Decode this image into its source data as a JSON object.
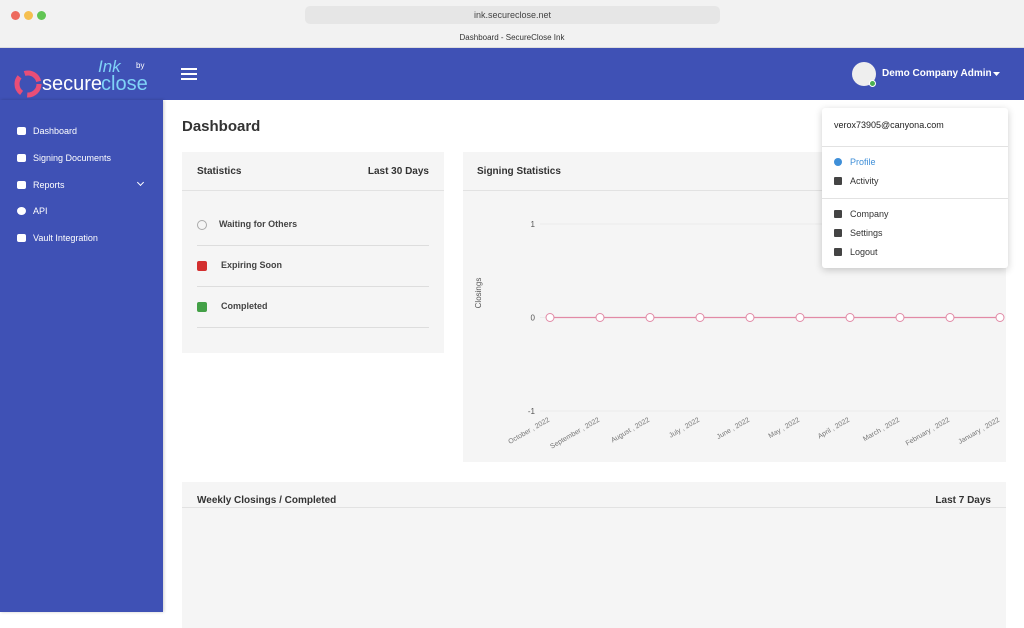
{
  "browser": {
    "url": "ink.secureclose.net",
    "tab_title": "Dashboard - SecureClose Ink"
  },
  "header": {
    "logo": {
      "brand_a": "secure",
      "brand_b": "close",
      "product": "Ink",
      "by": "by"
    },
    "user": "Demo Company Admin"
  },
  "sidebar": {
    "items": [
      "Dashboard",
      "Signing Documents",
      "Reports",
      "API",
      "Vault Integration"
    ]
  },
  "page_title": "Dashboard",
  "statistics": {
    "title": "Statistics",
    "period": "Last 30 Days",
    "items": [
      "Waiting for Others",
      "Expiring Soon",
      "Completed"
    ]
  },
  "signing_statistics": {
    "type": "line",
    "title": "Signing Statistics",
    "y_label": "Closings",
    "categories": [
      "October , 2022",
      "September , 2022",
      "August , 2022",
      "July , 2022",
      "June , 2022",
      "May , 2022",
      "April , 2022",
      "March , 2022",
      "February , 2022",
      "January , 2022"
    ],
    "series": [
      {
        "color": "#e28aa6",
        "values": [
          0,
          0,
          0,
          0,
          0,
          0,
          0,
          0,
          0,
          0
        ]
      }
    ],
    "ylim": [
      -1,
      1
    ],
    "yticks": [
      -1,
      0,
      1
    ],
    "grid": true
  },
  "weekly": {
    "title": "Weekly Closings / Completed",
    "period": "Last 7 Days"
  },
  "user_menu": {
    "email": "verox73905@canyona.com",
    "items": [
      "Profile",
      "Activity",
      "Company",
      "Settings",
      "Logout"
    ]
  }
}
